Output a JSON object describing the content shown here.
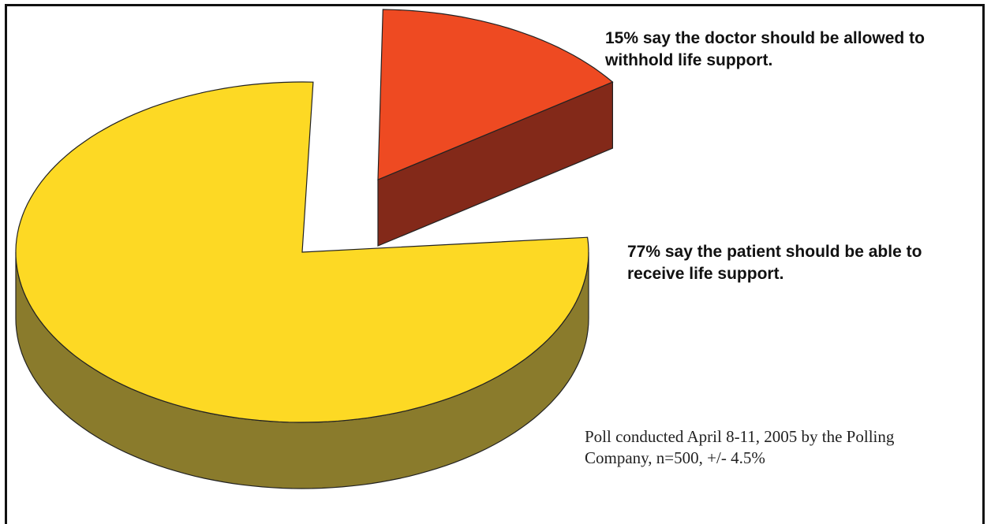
{
  "chart_data": {
    "type": "pie",
    "title": "",
    "slices": [
      {
        "id": "withhold",
        "value": 15,
        "label": "15%  say the doctor should be allowed to withhold life support.",
        "top_color": "#EE4A22",
        "side_color": "#832919",
        "exploded": true
      },
      {
        "id": "receive",
        "value": 77,
        "label": "77% say the patient should be able to receive life support.",
        "top_color": "#FDD924",
        "side_color": "#8A7B2C",
        "exploded": false
      }
    ],
    "note": "Poll conducted April 8-11, 2005 by the Polling Company, n=500, +/- 4.5%"
  }
}
